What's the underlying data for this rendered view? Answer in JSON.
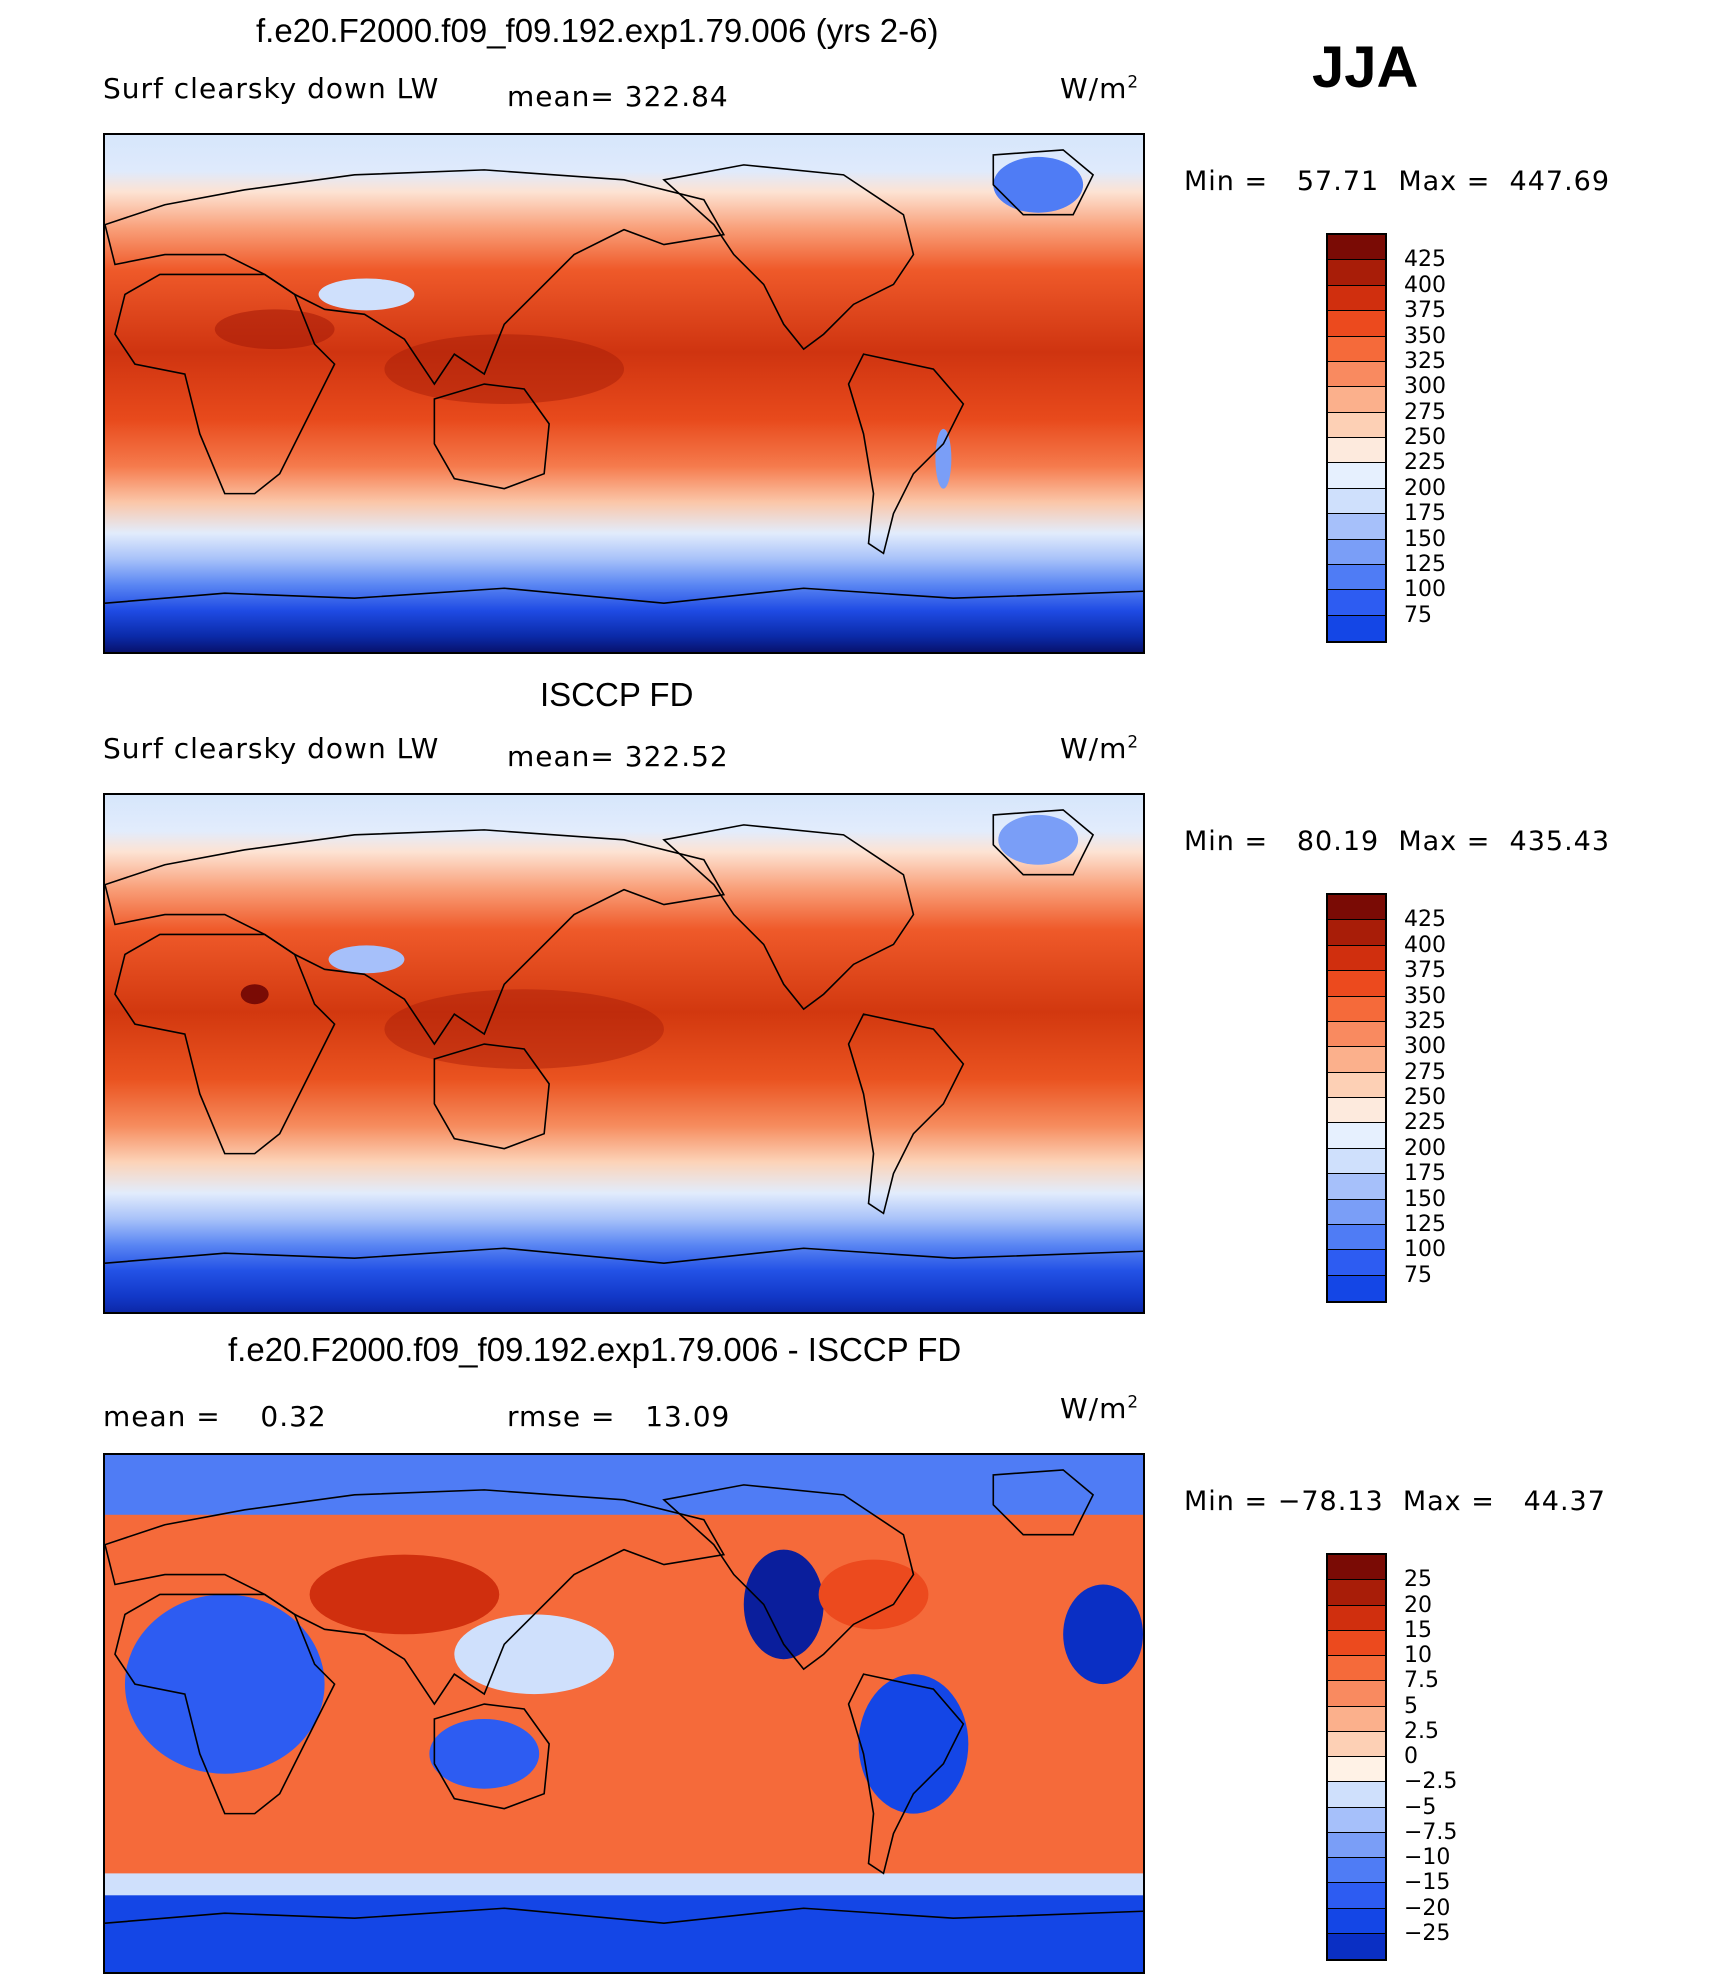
{
  "season": "JJA",
  "colors": {
    "mean_levels": [
      "#08006e",
      "#0a1e9c",
      "#0a2fc4",
      "#1446e6",
      "#2d5cf2",
      "#4f7cf5",
      "#7a9ef7",
      "#a6c0fa",
      "#cfe0fc",
      "#e6f0fe",
      "#fdeadd",
      "#fdd0b5",
      "#fbb08c",
      "#f98a60",
      "#f56a3a",
      "#ec4a1e",
      "#d02f0e",
      "#a81d08",
      "#7a0b05"
    ],
    "diff_levels": [
      "#08006e",
      "#0a1e9c",
      "#0a2fc4",
      "#1446e6",
      "#2d5cf2",
      "#4f7cf5",
      "#7a9ef7",
      "#a6c0fa",
      "#cfe0fc",
      "#fff2e6",
      "#fdd0b5",
      "#fbb08c",
      "#f98a60",
      "#f56a3a",
      "#ec4a1e",
      "#d02f0e",
      "#a81d08",
      "#7a0b05"
    ]
  },
  "panels": [
    {
      "title": "f.e20.F2000.f09_f09.192.exp1.79.006 (yrs 2-6)",
      "left_label": "Surf clearsky down LW",
      "stat1": "mean= 322.84",
      "stat2": "",
      "units_base": "W/m",
      "units_exp": "2",
      "min_label": "Min =",
      "min_value": "57.71",
      "max_label": "Max =",
      "max_value": "447.69",
      "colorbar_ticks": [
        "425",
        "400",
        "375",
        "350",
        "325",
        "300",
        "275",
        "250",
        "225",
        "200",
        "175",
        "150",
        "125",
        "100",
        "75"
      ]
    },
    {
      "title": "ISCCP FD",
      "left_label": "Surf clearsky down LW",
      "stat1": "mean= 322.52",
      "stat2": "",
      "units_base": "W/m",
      "units_exp": "2",
      "min_label": "Min =",
      "min_value": "80.19",
      "max_label": "Max =",
      "max_value": "435.43",
      "colorbar_ticks": [
        "425",
        "400",
        "375",
        "350",
        "325",
        "300",
        "275",
        "250",
        "225",
        "200",
        "175",
        "150",
        "125",
        "100",
        "75"
      ]
    },
    {
      "title": "f.e20.F2000.f09_f09.192.exp1.79.006 - ISCCP FD",
      "left_label": "mean =",
      "left_value": "0.32",
      "stat1": "rmse =",
      "stat2": "13.09",
      "units_base": "W/m",
      "units_exp": "2",
      "min_label": "Min =",
      "min_value": "−78.13",
      "max_label": "Max =",
      "max_value": "44.37",
      "colorbar_ticks": [
        "25",
        "20",
        "15",
        "10",
        "7.5",
        "5",
        "2.5",
        "0",
        "−2.5",
        "−5",
        "−7.5",
        "−10",
        "−15",
        "−20",
        "−25"
      ]
    }
  ]
}
